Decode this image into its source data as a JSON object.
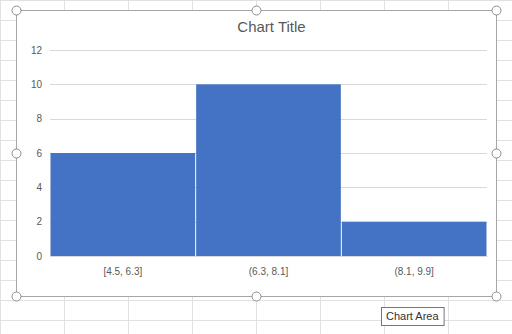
{
  "chart_data": {
    "type": "histogram",
    "title": "Chart Title",
    "categories": [
      "[4.5, 6.3]",
      "(6.3, 8.1]",
      "(8.1, 9.9]"
    ],
    "values": [
      6,
      10,
      2
    ],
    "color": "#4472c4",
    "ylim": [
      0,
      12
    ],
    "yticks": [
      0,
      2,
      4,
      6,
      8,
      10,
      12
    ],
    "grid": true,
    "annotations": [
      "Chart Area"
    ]
  }
}
